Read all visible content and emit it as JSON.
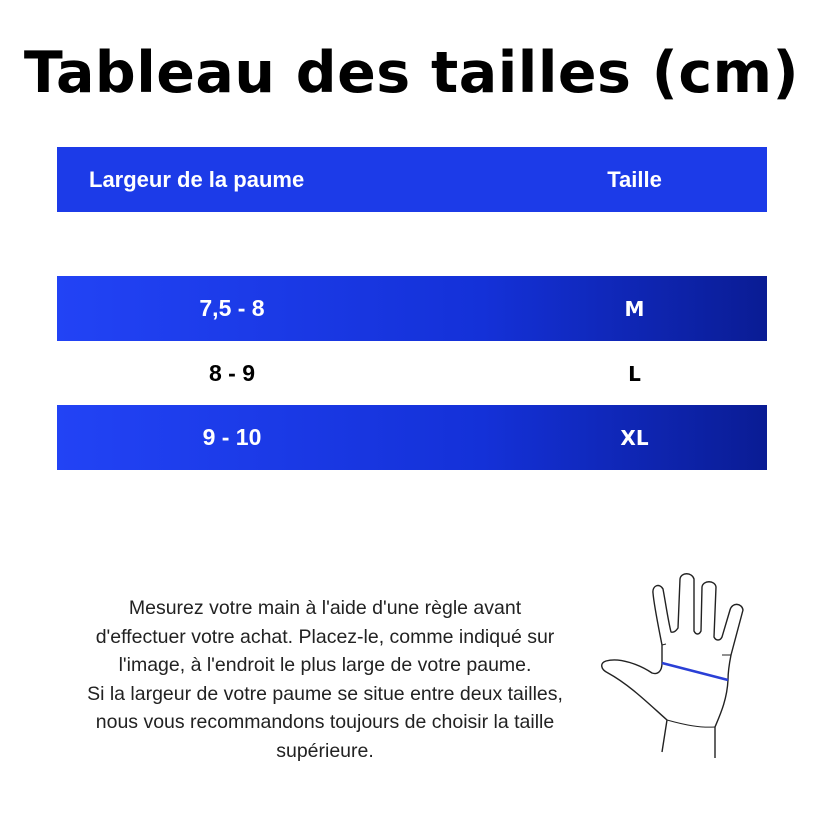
{
  "title": "Tableau des tailles (cm)",
  "table": {
    "headers": [
      "Largeur de la paume",
      "Taille"
    ],
    "rows": [
      {
        "width": "7,5 - 8",
        "size": "M"
      },
      {
        "width": "8 - 9",
        "size": "L"
      },
      {
        "width": "9 - 10",
        "size": "XL"
      }
    ]
  },
  "instructions": [
    "Mesurez votre main à l'aide d'une règle avant",
    "d'effectuer votre achat. Placez-le, comme indiqué sur",
    "l'image, à l'endroit le plus large de votre paume.",
    "Si la largeur de votre paume se situe entre deux tailles,",
    "nous vous recommandons toujours de choisir la taille",
    "supérieure."
  ],
  "colors": {
    "accent": "#1c3be8",
    "accent_dark": "#0a1c94",
    "measure_line": "#2a3fd6"
  },
  "illustration": "hand-measure-icon"
}
